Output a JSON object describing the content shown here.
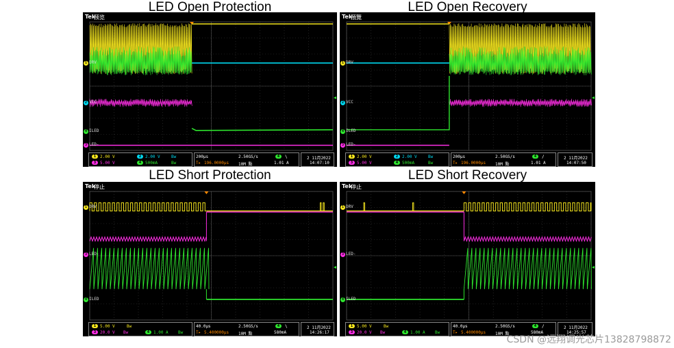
{
  "colors": {
    "ch1": "#f5e61e",
    "ch2": "#00d8ef",
    "ch3": "#ff2ee6",
    "ch4": "#2ee62e",
    "grid": "#3a3a3a",
    "trigger": "#ff8a00"
  },
  "brand": "Tek",
  "watermark": "CSDN @远翔调光芯片13828798872",
  "panels": [
    {
      "title": "LED Open Protection",
      "state": "预览",
      "ch_labels": [
        {
          "num": "1",
          "text": "DRV",
          "color": "ch1"
        },
        {
          "num": "2",
          "text": "VCC",
          "color": "ch2"
        },
        {
          "num": "4",
          "text": "ILED",
          "color": "ch4"
        },
        {
          "num": "3",
          "text": "LED-",
          "color": "ch3"
        }
      ],
      "scale_row1": {
        "ch1": "2.00 V",
        "ch2": "2.00 V",
        "bw": "Bw"
      },
      "scale_row2": {
        "ch3": "5.00 V",
        "ch4": "500mA",
        "bw": "Bw"
      },
      "timebase": "200μs",
      "trig_pos": "196.0000μs",
      "sample_rate": "2.50GS/s",
      "record": "10M 點",
      "trig_src": "4",
      "trig_slope": "\\",
      "trig_level": "1.01 A",
      "date": "2 11月2022",
      "time": "14:07:10"
    },
    {
      "title": "LED Open Recovery",
      "state": "預覽",
      "ch_labels": [
        {
          "num": "1",
          "text": "DRV",
          "color": "ch1"
        },
        {
          "num": "2",
          "text": "VCC",
          "color": "ch2"
        },
        {
          "num": "4",
          "text": "ILED",
          "color": "ch4"
        },
        {
          "num": "3",
          "text": "LED-",
          "color": "ch3"
        }
      ],
      "scale_row1": {
        "ch1": "2.00 V",
        "ch2": "2.00 V",
        "bw": "Bw"
      },
      "scale_row2": {
        "ch3": "5.00 V",
        "ch4": "500mA",
        "bw": "Bw"
      },
      "timebase": "200μs",
      "trig_pos": "196.0000μs",
      "sample_rate": "2.50GS/s",
      "record": "10M 點",
      "trig_src": "4",
      "trig_slope": "/",
      "trig_level": "1.01 A",
      "date": "2 11月2022",
      "time": "14:07:50"
    },
    {
      "title": "LED Short Protection",
      "state": "停止",
      "ch_labels": [
        {
          "num": "1",
          "text": "DRV",
          "color": "ch1"
        },
        {
          "num": "3",
          "text": "LED-",
          "color": "ch3"
        },
        {
          "num": "4",
          "text": "ILED",
          "color": "ch4"
        }
      ],
      "scale_row1": {
        "ch1": "5.00 V",
        "bw": "Bw"
      },
      "scale_row2": {
        "ch3": "20.0 V",
        "ch4": "1.00 A",
        "bw": "Bw"
      },
      "timebase": "40.0μs",
      "trig_pos": "5.400000μs",
      "sample_rate": "2.50GS/s",
      "record": "10M 點",
      "trig_src": "4",
      "trig_slope": "\\",
      "trig_level": "580mA",
      "date": "2 11月2022",
      "time": "14:26:17"
    },
    {
      "title": "LED Short Recovery",
      "state": "停止",
      "ch_labels": [
        {
          "num": "1",
          "text": "DRV",
          "color": "ch1"
        },
        {
          "num": "3",
          "text": "LED-",
          "color": "ch3"
        },
        {
          "num": "4",
          "text": "ILED",
          "color": "ch4"
        }
      ],
      "scale_row1": {
        "ch1": "5.00 V",
        "bw": "Bw"
      },
      "scale_row2": {
        "ch3": "20.0 V",
        "ch4": "1.00 A",
        "bw": "Bw"
      },
      "timebase": "40.0μs",
      "trig_pos": "5.400000μs",
      "sample_rate": "2.50GS/s",
      "record": "10M 點",
      "trig_src": "4",
      "trig_slope": "/",
      "trig_level": "580mA",
      "date": "2 11月2022",
      "time": "14:25:57"
    }
  ]
}
